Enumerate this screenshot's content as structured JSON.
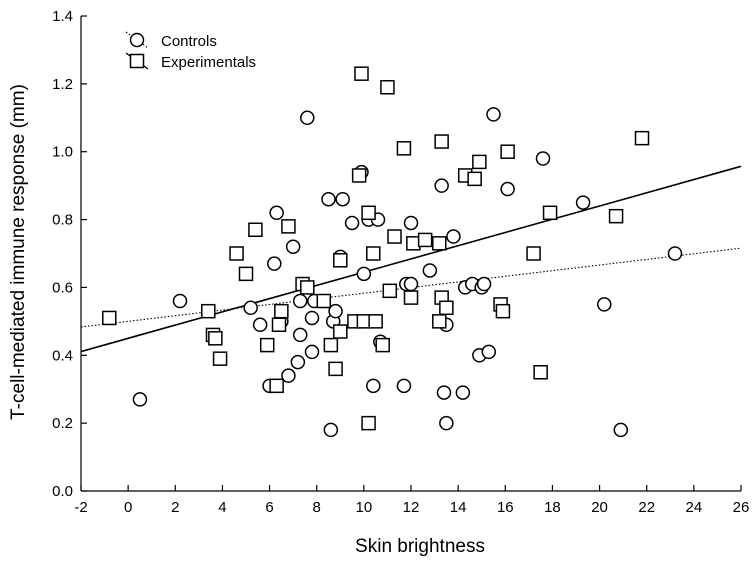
{
  "chart_data": {
    "type": "scatter",
    "xlabel": "Skin brightness",
    "ylabel": "T-cell-mediated immune response (mm)",
    "xlim": [
      -2,
      26
    ],
    "ylim": [
      0.0,
      1.4
    ],
    "xticks": [
      "-2",
      "0",
      "2",
      "4",
      "6",
      "8",
      "10",
      "12",
      "14",
      "16",
      "18",
      "20",
      "22",
      "24",
      "26"
    ],
    "yticks": [
      "0.0",
      "0.2",
      "0.4",
      "0.6",
      "0.8",
      "1.0",
      "1.2",
      "1.4"
    ],
    "grid": false,
    "legend_position": "top-left",
    "series": [
      {
        "name": "Controls",
        "marker": "circle",
        "line_style": "dotted",
        "fit": {
          "intercept": 0.5,
          "slope": 0.0083
        },
        "points": [
          [
            0.5,
            0.27
          ],
          [
            2.2,
            0.56
          ],
          [
            5.2,
            0.54
          ],
          [
            5.6,
            0.49
          ],
          [
            6.0,
            0.31
          ],
          [
            6.2,
            0.67
          ],
          [
            6.3,
            0.82
          ],
          [
            6.5,
            0.5
          ],
          [
            6.8,
            0.34
          ],
          [
            7.0,
            0.72
          ],
          [
            7.2,
            0.38
          ],
          [
            7.3,
            0.46
          ],
          [
            7.3,
            0.56
          ],
          [
            7.6,
            1.1
          ],
          [
            7.8,
            0.41
          ],
          [
            7.8,
            0.51
          ],
          [
            7.9,
            0.56
          ],
          [
            8.5,
            0.86
          ],
          [
            8.6,
            0.18
          ],
          [
            8.7,
            0.5
          ],
          [
            8.8,
            0.53
          ],
          [
            9.0,
            0.69
          ],
          [
            9.1,
            0.86
          ],
          [
            9.5,
            0.79
          ],
          [
            9.9,
            0.94
          ],
          [
            10.0,
            0.64
          ],
          [
            10.2,
            0.8
          ],
          [
            10.4,
            0.31
          ],
          [
            10.6,
            0.8
          ],
          [
            10.7,
            0.44
          ],
          [
            11.7,
            0.31
          ],
          [
            11.8,
            0.61
          ],
          [
            12.0,
            0.61
          ],
          [
            12.0,
            0.79
          ],
          [
            12.8,
            0.65
          ],
          [
            13.3,
            0.9
          ],
          [
            13.4,
            0.29
          ],
          [
            13.5,
            0.49
          ],
          [
            13.5,
            0.2
          ],
          [
            13.8,
            0.75
          ],
          [
            14.2,
            0.29
          ],
          [
            14.3,
            0.6
          ],
          [
            14.6,
            0.61
          ],
          [
            14.9,
            0.4
          ],
          [
            15.0,
            0.6
          ],
          [
            15.1,
            0.61
          ],
          [
            15.3,
            0.41
          ],
          [
            15.5,
            1.11
          ],
          [
            16.1,
            0.89
          ],
          [
            17.6,
            0.98
          ],
          [
            19.3,
            0.85
          ],
          [
            20.2,
            0.55
          ],
          [
            20.9,
            0.18
          ],
          [
            23.2,
            0.7
          ]
        ]
      },
      {
        "name": "Experimentals",
        "marker": "square",
        "line_style": "solid",
        "fit": {
          "intercept": 0.45,
          "slope": 0.0195
        },
        "points": [
          [
            -0.8,
            0.51
          ],
          [
            3.4,
            0.53
          ],
          [
            3.6,
            0.46
          ],
          [
            3.7,
            0.45
          ],
          [
            3.9,
            0.39
          ],
          [
            4.6,
            0.7
          ],
          [
            5.0,
            0.64
          ],
          [
            5.4,
            0.77
          ],
          [
            5.9,
            0.43
          ],
          [
            6.3,
            0.31
          ],
          [
            6.4,
            0.49
          ],
          [
            6.5,
            0.53
          ],
          [
            6.8,
            0.78
          ],
          [
            7.4,
            0.61
          ],
          [
            7.6,
            0.6
          ],
          [
            8.3,
            0.56
          ],
          [
            8.6,
            0.43
          ],
          [
            8.8,
            0.36
          ],
          [
            9.0,
            0.68
          ],
          [
            9.0,
            0.47
          ],
          [
            9.6,
            0.5
          ],
          [
            9.8,
            0.93
          ],
          [
            9.9,
            1.23
          ],
          [
            10.0,
            0.5
          ],
          [
            10.2,
            0.82
          ],
          [
            10.2,
            0.2
          ],
          [
            10.4,
            0.7
          ],
          [
            10.5,
            0.5
          ],
          [
            10.8,
            0.43
          ],
          [
            11.0,
            1.19
          ],
          [
            11.1,
            0.59
          ],
          [
            11.3,
            0.75
          ],
          [
            11.7,
            1.01
          ],
          [
            12.0,
            0.57
          ],
          [
            12.1,
            0.73
          ],
          [
            12.6,
            0.74
          ],
          [
            13.2,
            0.73
          ],
          [
            13.2,
            0.5
          ],
          [
            13.3,
            1.03
          ],
          [
            13.3,
            0.57
          ],
          [
            13.5,
            0.54
          ],
          [
            14.3,
            0.93
          ],
          [
            14.7,
            0.92
          ],
          [
            14.9,
            0.97
          ],
          [
            15.8,
            0.55
          ],
          [
            15.9,
            0.53
          ],
          [
            16.1,
            1.0
          ],
          [
            17.2,
            0.7
          ],
          [
            17.5,
            0.35
          ],
          [
            17.9,
            0.82
          ],
          [
            20.7,
            0.81
          ],
          [
            21.8,
            1.04
          ]
        ]
      }
    ]
  }
}
